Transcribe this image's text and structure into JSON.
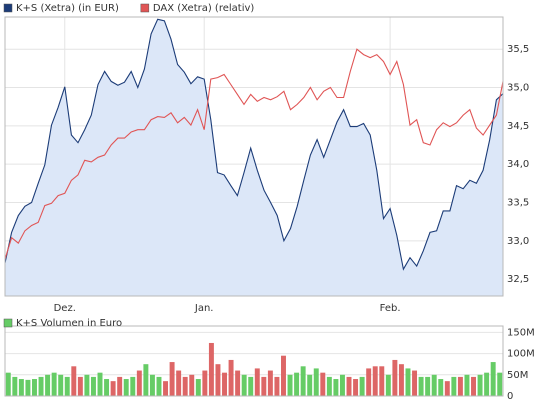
{
  "chart_data": [
    {
      "type": "line",
      "categories": [
        null,
        null,
        null,
        null,
        null,
        null,
        null,
        null,
        null,
        "Dez.",
        null,
        null,
        null,
        null,
        null,
        null,
        null,
        null,
        null,
        null,
        null,
        null,
        null,
        null,
        null,
        null,
        null,
        null,
        null,
        null,
        "Jan.",
        null,
        null,
        null,
        null,
        null,
        null,
        null,
        null,
        null,
        null,
        null,
        null,
        null,
        null,
        null,
        null,
        null,
        null,
        null,
        null,
        null,
        null,
        null,
        null,
        null,
        null,
        null,
        "Feb.",
        null,
        null,
        null,
        null,
        null,
        null,
        null,
        null,
        null,
        null,
        null,
        null,
        null,
        null,
        null,
        null,
        null
      ],
      "series": [
        {
          "name": "K+S (Xetra) (in EUR)",
          "color": "#1c3c78",
          "area_color": "#dce7f8",
          "values": [
            32.71,
            33.11,
            33.33,
            33.45,
            33.5,
            33.75,
            33.99,
            34.51,
            34.74,
            35.01,
            34.38,
            34.28,
            34.45,
            34.64,
            35.04,
            35.21,
            35.08,
            35.03,
            35.07,
            35.21,
            35.0,
            35.24,
            35.7,
            35.89,
            35.87,
            35.63,
            35.3,
            35.2,
            35.05,
            35.14,
            35.11,
            34.58,
            33.89,
            33.86,
            33.72,
            33.59,
            33.89,
            34.21,
            33.92,
            33.66,
            33.5,
            33.33,
            33.0,
            33.16,
            33.45,
            33.79,
            34.12,
            34.32,
            34.09,
            34.32,
            34.55,
            34.71,
            34.49,
            34.49,
            34.53,
            34.38,
            33.92,
            33.29,
            33.42,
            33.07,
            32.63,
            32.78,
            32.67,
            32.87,
            33.11,
            33.13,
            33.39,
            33.39,
            33.72,
            33.68,
            33.79,
            33.75,
            33.92,
            34.32,
            34.84,
            34.92
          ]
        },
        {
          "name": "DAX (Xetra) (relativ)",
          "color": "#e05555",
          "values": [
            32.76,
            33.04,
            32.97,
            33.13,
            33.2,
            33.24,
            33.46,
            33.49,
            33.59,
            33.62,
            33.79,
            33.86,
            34.05,
            34.03,
            34.09,
            34.12,
            34.25,
            34.34,
            34.34,
            34.42,
            34.45,
            34.45,
            34.58,
            34.62,
            34.61,
            34.67,
            34.54,
            34.61,
            34.51,
            34.71,
            34.45,
            35.11,
            35.13,
            35.17,
            35.04,
            34.91,
            34.78,
            34.91,
            34.82,
            34.87,
            34.84,
            34.88,
            34.95,
            34.71,
            34.78,
            34.87,
            35.0,
            34.84,
            34.95,
            35.0,
            34.87,
            34.87,
            35.21,
            35.5,
            35.43,
            35.39,
            35.43,
            35.34,
            35.17,
            35.34,
            35.04,
            34.51,
            34.58,
            34.28,
            34.25,
            34.45,
            34.54,
            34.49,
            34.54,
            34.64,
            34.71,
            34.47,
            34.38,
            34.51,
            34.64,
            35.08
          ]
        }
      ],
      "ylim": [
        32.28,
        35.92
      ],
      "yticks": [
        {
          "value": 32.5,
          "label": "32,5"
        },
        {
          "value": 33,
          "label": "33,0"
        },
        {
          "value": 33.5,
          "label": "33,5"
        },
        {
          "value": 34,
          "label": "34,0"
        },
        {
          "value": 34.5,
          "label": "34,5"
        },
        {
          "value": 35,
          "label": "35,0"
        },
        {
          "value": 35.5,
          "label": "35,5"
        }
      ],
      "grid": true
    },
    {
      "type": "bar",
      "series": [
        {
          "name": "K+S Volumen in Euro",
          "color": "#66cc66",
          "values": [
            55,
            45,
            40,
            38,
            40,
            45,
            50,
            55,
            50,
            45,
            70,
            45,
            50,
            45,
            55,
            40,
            35,
            45,
            40,
            45,
            60,
            75,
            50,
            45,
            35,
            80,
            60,
            45,
            50,
            40,
            60,
            125,
            75,
            55,
            85,
            60,
            50,
            45,
            65,
            45,
            60,
            45,
            95,
            50,
            55,
            70,
            50,
            65,
            55,
            45,
            40,
            50,
            45,
            40,
            45,
            65,
            70,
            70,
            50,
            85,
            75,
            65,
            60,
            45,
            45,
            50,
            40,
            35,
            45,
            45,
            50,
            45,
            50,
            55,
            80,
            55
          ]
        }
      ],
      "colors": [
        "#66cc66",
        "#66cc66",
        "#66cc66",
        "#66cc66",
        "#66cc66",
        "#66cc66",
        "#66cc66",
        "#66cc66",
        "#66cc66",
        "#66cc66",
        "#dd6666",
        "#dd6666",
        "#66cc66",
        "#66cc66",
        "#66cc66",
        "#66cc66",
        "#dd6666",
        "#dd6666",
        "#66cc66",
        "#66cc66",
        "#dd6666",
        "#66cc66",
        "#66cc66",
        "#66cc66",
        "#dd6666",
        "#dd6666",
        "#dd6666",
        "#dd6666",
        "#dd6666",
        "#66cc66",
        "#dd6666",
        "#dd6666",
        "#dd6666",
        "#dd6666",
        "#dd6666",
        "#dd6666",
        "#66cc66",
        "#66cc66",
        "#dd6666",
        "#dd6666",
        "#dd6666",
        "#dd6666",
        "#dd6666",
        "#66cc66",
        "#66cc66",
        "#66cc66",
        "#66cc66",
        "#66cc66",
        "#dd6666",
        "#66cc66",
        "#66cc66",
        "#66cc66",
        "#dd6666",
        "#dd6666",
        "#66cc66",
        "#dd6666",
        "#dd6666",
        "#dd6666",
        "#66cc66",
        "#dd6666",
        "#dd6666",
        "#66cc66",
        "#dd6666",
        "#66cc66",
        "#66cc66",
        "#66cc66",
        "#66cc66",
        "#dd6666",
        "#66cc66",
        "#dd6666",
        "#66cc66",
        "#dd6666",
        "#66cc66",
        "#66cc66",
        "#66cc66",
        "#66cc66"
      ],
      "ylim": [
        0,
        165
      ],
      "yticks": [
        0,
        {
          "value": 50,
          "label": "50M"
        },
        {
          "value": 100,
          "label": "100M"
        },
        {
          "value": 150,
          "label": "150M"
        }
      ],
      "grid": true
    }
  ]
}
